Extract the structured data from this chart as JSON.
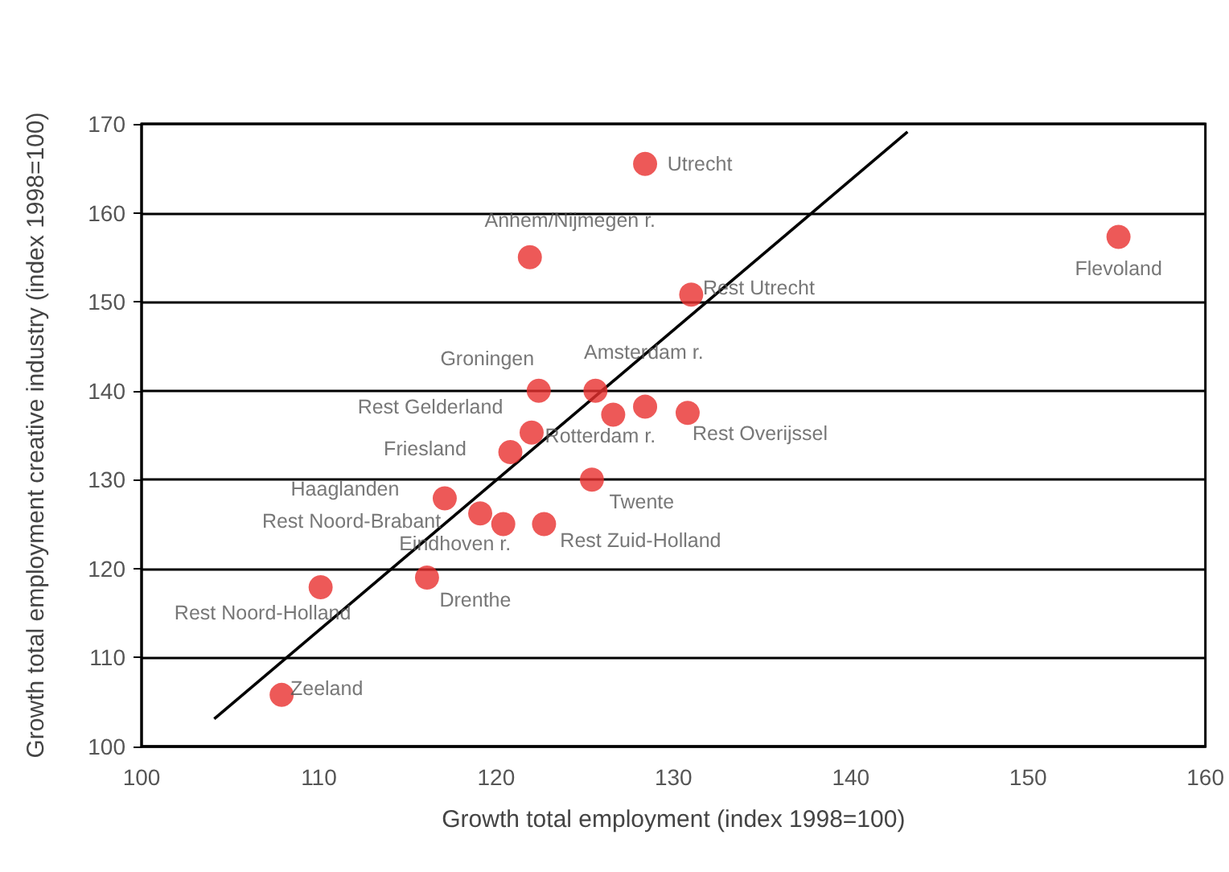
{
  "chart_data": {
    "type": "scatter",
    "xlabel": "Growth total employment (index 1998=100)",
    "ylabel": "Growth total employment creative industry (index 1998=100)",
    "xlim": [
      100,
      160
    ],
    "xticks": [
      100,
      110,
      120,
      130,
      140,
      150,
      160
    ],
    "ylim": [
      100,
      170
    ],
    "yticks": [
      100,
      110,
      120,
      130,
      140,
      150,
      160,
      170
    ],
    "grid": "y",
    "marker": "circle",
    "series": [
      {
        "color": "#e8302e",
        "x": [
          128.4,
          121.9,
          155.1,
          131.0,
          122.4,
          125.6,
          122.0,
          126.6,
          130.8,
          120.8,
          125.4,
          117.1,
          119.1,
          120.4,
          122.7,
          116.1,
          110.1,
          107.9,
          128.4
        ],
        "values": [
          165.5,
          155.0,
          157.3,
          150.8,
          140.0,
          140.0,
          135.3,
          137.3,
          137.5,
          133.1,
          130.0,
          127.9,
          126.2,
          125.0,
          125.0,
          119.0,
          117.9,
          105.8,
          138.2
        ]
      },
      {
        "type": "line",
        "marker": "none",
        "color": "#000000",
        "x": [
          104.1,
          143.2
        ],
        "values": [
          103.1,
          169.1
        ]
      }
    ],
    "annotations": [
      {
        "text": "Utrecht",
        "x": 128.4,
        "y": 165.5
      },
      {
        "text": "Anhem/Nijmegen r.",
        "x": 121.9,
        "y": 155.0
      },
      {
        "text": "Flevoland",
        "x": 155.1,
        "y": 157.3
      },
      {
        "text": "Rest Utrecht",
        "x": 131.0,
        "y": 150.8
      },
      {
        "text": "Groningen",
        "x": 122.4,
        "y": 140.0
      },
      {
        "text": "Amsterdam r.",
        "x": 125.6,
        "y": 140.0
      },
      {
        "text": "Rest Gelderland",
        "x": 122.0,
        "y": 135.3
      },
      {
        "text": "Rotterdam r.",
        "x": 126.6,
        "y": 137.3
      },
      {
        "text": "Rest Overijssel",
        "x": 130.8,
        "y": 137.5
      },
      {
        "text": "Friesland",
        "x": 120.8,
        "y": 133.1
      },
      {
        "text": "Twente",
        "x": 125.4,
        "y": 130.0
      },
      {
        "text": "Haaglanden",
        "x": 117.1,
        "y": 127.9
      },
      {
        "text": "Rest Noord-Brabant",
        "x": 119.1,
        "y": 126.2
      },
      {
        "text": "Eindhoven r.",
        "x": 120.4,
        "y": 125.0
      },
      {
        "text": "Rest Zuid-Holland",
        "x": 122.7,
        "y": 125.0
      },
      {
        "text": "Drenthe",
        "x": 116.1,
        "y": 119.0
      },
      {
        "text": "Rest Noord-Holland",
        "x": 110.1,
        "y": 117.9
      },
      {
        "text": "Zeeland",
        "x": 107.9,
        "y": 105.8
      }
    ]
  }
}
